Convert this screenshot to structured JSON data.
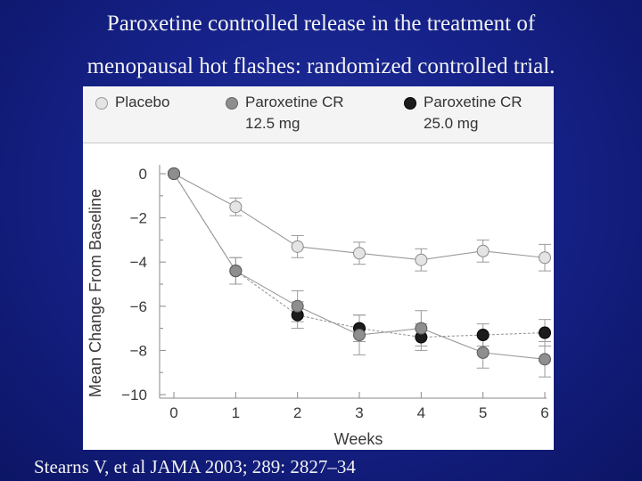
{
  "slide": {
    "title_line1": "Paroxetine controlled release in the treatment of",
    "title_line2": "menopausal hot flashes: randomized controlled trial.",
    "citation": "Stearns V, et al JAMA 2003; 289: 2827–34"
  },
  "legend": {
    "items": [
      {
        "label": "Placebo",
        "sublabel": "",
        "color": "#e4e4e4"
      },
      {
        "label": "Paroxetine CR",
        "sublabel": "12.5 mg",
        "color": "#8e8e8e"
      },
      {
        "label": "Paroxetine CR",
        "sublabel": "25.0 mg",
        "color": "#1c1c1c"
      }
    ]
  },
  "chart_data": {
    "type": "line",
    "title": "",
    "xlabel": "Weeks",
    "ylabel": "Mean Change From Baseline",
    "x": [
      0,
      1,
      2,
      3,
      4,
      5,
      6
    ],
    "xticks": [
      "0",
      "1",
      "2",
      "3",
      "4",
      "5",
      "6"
    ],
    "yticks": [
      "0",
      "−2",
      "−4",
      "−6",
      "−8",
      "−10"
    ],
    "ytick_values": [
      0,
      -2,
      -4,
      -6,
      -8,
      -10
    ],
    "ylim": [
      -10,
      0
    ],
    "xlim": [
      0,
      6
    ],
    "grid": false,
    "series": [
      {
        "name": "Placebo",
        "color": "#e4e4e4",
        "values": [
          0,
          -1.5,
          -3.3,
          -3.6,
          -3.9,
          -3.5,
          -3.8
        ],
        "err": [
          0,
          0.4,
          0.5,
          0.5,
          0.5,
          0.5,
          0.6
        ]
      },
      {
        "name": "Paroxetine CR 12.5 mg",
        "color": "#8e8e8e",
        "values": [
          0,
          -4.4,
          -6.0,
          -7.3,
          -7.0,
          -8.1,
          -8.4
        ],
        "err": [
          0,
          0.6,
          0.7,
          0.9,
          0.8,
          0.7,
          0.8
        ]
      },
      {
        "name": "Paroxetine CR 25.0 mg",
        "color": "#1c1c1c",
        "values": [
          0,
          -4.4,
          -6.4,
          -7.0,
          -7.4,
          -7.3,
          -7.2
        ],
        "err": [
          0,
          0.6,
          0.6,
          0.6,
          0.6,
          0.5,
          0.6
        ]
      }
    ]
  }
}
